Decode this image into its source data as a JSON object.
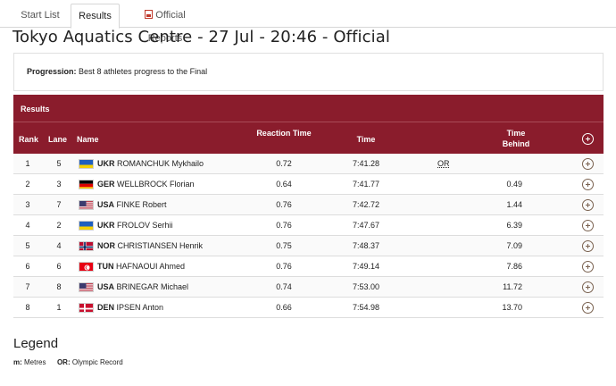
{
  "tabs": [
    {
      "label": "Start List"
    },
    {
      "label": "Results"
    },
    {
      "label": "Official Reports"
    }
  ],
  "venue_title": "Tokyo Aquatics Centre - 27 Jul - 20:46 - Official",
  "progression": {
    "label": "Progression:",
    "text": "Best 8 athletes progress to the Final"
  },
  "results": {
    "section_label": "Results",
    "columns": {
      "rank": "Rank",
      "lane": "Lane",
      "name": "Name",
      "reaction_time": "Reaction Time",
      "time": "Time",
      "time_behind": "Time Behind"
    },
    "rows": [
      {
        "rank": "1",
        "lane": "5",
        "noc": "UKR",
        "name": "ROMANCHUK Mykhailo",
        "flag": "ukr",
        "reaction": "0.72",
        "time": "7:41.28",
        "record": "OR",
        "behind": ""
      },
      {
        "rank": "2",
        "lane": "3",
        "noc": "GER",
        "name": "WELLBROCK Florian",
        "flag": "ger",
        "reaction": "0.64",
        "time": "7:41.77",
        "record": "",
        "behind": "0.49"
      },
      {
        "rank": "3",
        "lane": "7",
        "noc": "USA",
        "name": "FINKE Robert",
        "flag": "usa",
        "reaction": "0.76",
        "time": "7:42.72",
        "record": "",
        "behind": "1.44"
      },
      {
        "rank": "4",
        "lane": "2",
        "noc": "UKR",
        "name": "FROLOV Serhii",
        "flag": "ukr",
        "reaction": "0.76",
        "time": "7:47.67",
        "record": "",
        "behind": "6.39"
      },
      {
        "rank": "5",
        "lane": "4",
        "noc": "NOR",
        "name": "CHRISTIANSEN Henrik",
        "flag": "nor",
        "reaction": "0.75",
        "time": "7:48.37",
        "record": "",
        "behind": "7.09"
      },
      {
        "rank": "6",
        "lane": "6",
        "noc": "TUN",
        "name": "HAFNAOUI Ahmed",
        "flag": "tun",
        "reaction": "0.76",
        "time": "7:49.14",
        "record": "",
        "behind": "7.86"
      },
      {
        "rank": "7",
        "lane": "8",
        "noc": "USA",
        "name": "BRINEGAR Michael",
        "flag": "usa",
        "reaction": "0.74",
        "time": "7:53.00",
        "record": "",
        "behind": "11.72"
      },
      {
        "rank": "8",
        "lane": "1",
        "noc": "DEN",
        "name": "IPSEN Anton",
        "flag": "den",
        "reaction": "0.66",
        "time": "7:54.98",
        "record": "",
        "behind": "13.70"
      }
    ]
  },
  "legend": {
    "title": "Legend",
    "items": [
      {
        "key": "m:",
        "value": "Metres"
      },
      {
        "key": "OR:",
        "value": "Olympic Record"
      }
    ]
  },
  "colors": {
    "header_background": "#8a1c2c",
    "expand_icon": "#7a6250"
  },
  "icons": {
    "tab_reports": "pdf-icon",
    "expand_all": "plus-circle-icon",
    "row_expand": "plus-circle-icon"
  }
}
